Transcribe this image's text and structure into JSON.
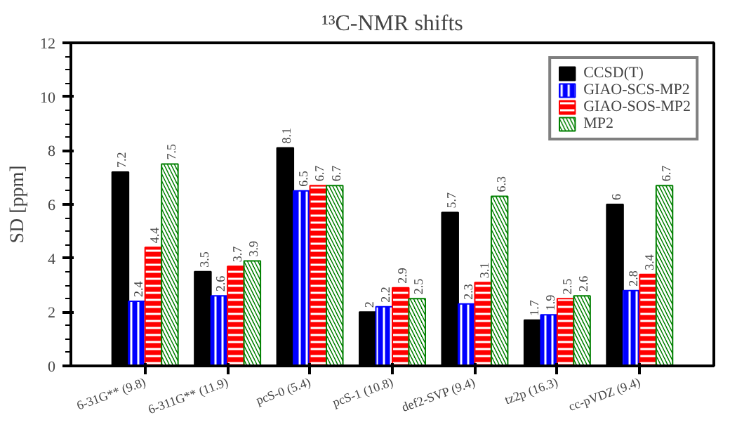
{
  "chart_data": {
    "type": "bar",
    "title": "¹³C-NMR shifts",
    "ylabel": "SD [ppm]",
    "categories": [
      "6-31G** (9.8)",
      "6-311G** (11.9)",
      "pcS-0 (5.4)",
      "pcS-1 (10.8)",
      "def2-SVP (9.4)",
      "tz2p (16.3)",
      "cc-pVDZ (9.4)"
    ],
    "series": [
      {
        "name": "CCSD(T)",
        "color": "#000000",
        "values": [
          7.2,
          3.5,
          8.1,
          2,
          5.7,
          1.7,
          6
        ]
      },
      {
        "name": "GIAO-SCS-MP2",
        "color": "#0000ff",
        "values": [
          2.4,
          2.6,
          6.5,
          2.2,
          2.3,
          1.9,
          2.8
        ]
      },
      {
        "name": "GIAO-SOS-MP2",
        "color": "#ff0000",
        "values": [
          4.4,
          3.7,
          6.7,
          2.9,
          3.1,
          2.5,
          3.4
        ]
      },
      {
        "name": "MP2",
        "color": "#008000",
        "values": [
          7.5,
          3.9,
          6.7,
          2.5,
          6.3,
          2.6,
          6.7
        ]
      }
    ],
    "ylim": [
      0,
      12
    ],
    "yticks": [
      0,
      2,
      4,
      6,
      8,
      10,
      12
    ],
    "data_labels": true,
    "legend": "top right",
    "grid": false
  }
}
